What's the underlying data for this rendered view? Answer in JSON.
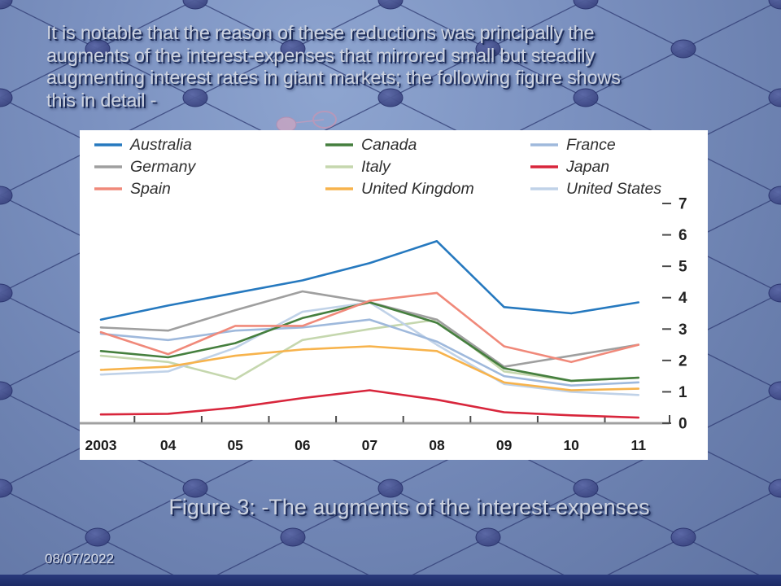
{
  "slide": {
    "intro_text": "It is notable that the reason of these reductions was principally the\naugments of the interest-expenses that mirrored small but steadily\naugmenting interest rates in giant markets; the following figure shows\nthis in detail -",
    "caption": "Figure 3: -The augments of the interest-expenses",
    "date": "08/07/2022"
  },
  "chart_data": {
    "type": "line",
    "x_tick_labels": [
      "2003",
      "04",
      "05",
      "06",
      "07",
      "08",
      "09",
      "10",
      "11"
    ],
    "y_ticks": [
      0,
      1,
      2,
      3,
      4,
      5,
      6,
      7
    ],
    "ylim": [
      0,
      7
    ],
    "grid": false,
    "legend_position": "top-left, 3 columns",
    "series": [
      {
        "name": "Australia",
        "color": "#2679bf",
        "values": [
          3.3,
          3.75,
          4.15,
          4.55,
          5.1,
          5.8,
          3.7,
          3.5,
          3.85
        ]
      },
      {
        "name": "Canada",
        "color": "#457f3e",
        "values": [
          2.3,
          2.1,
          2.55,
          3.35,
          3.85,
          3.2,
          1.75,
          1.35,
          1.45
        ]
      },
      {
        "name": "France",
        "color": "#9fb9dc",
        "values": [
          2.85,
          2.65,
          2.95,
          3.05,
          3.3,
          2.6,
          1.5,
          1.2,
          1.3
        ]
      },
      {
        "name": "Germany",
        "color": "#9f9f9f",
        "values": [
          3.05,
          2.95,
          3.6,
          4.2,
          3.85,
          3.3,
          1.8,
          2.15,
          2.5
        ]
      },
      {
        "name": "Italy",
        "color": "#c5d7ae",
        "values": [
          2.15,
          1.95,
          1.4,
          2.65,
          3.0,
          3.3,
          1.65,
          1.35,
          1.45
        ]
      },
      {
        "name": "Japan",
        "color": "#d8263c",
        "values": [
          0.28,
          0.3,
          0.5,
          0.8,
          1.05,
          0.75,
          0.35,
          0.25,
          0.18
        ]
      },
      {
        "name": "Spain",
        "color": "#f0897a",
        "values": [
          2.9,
          2.2,
          3.1,
          3.1,
          3.9,
          4.15,
          2.45,
          1.95,
          2.5
        ]
      },
      {
        "name": "United Kingdom",
        "color": "#f7b34c",
        "values": [
          1.7,
          1.8,
          2.15,
          2.35,
          2.45,
          2.3,
          1.3,
          1.05,
          1.1
        ]
      },
      {
        "name": "United States",
        "color": "#c0d2e8",
        "values": [
          1.55,
          1.65,
          2.4,
          3.55,
          3.85,
          2.5,
          1.25,
          1.0,
          0.9
        ]
      }
    ]
  },
  "theme": {
    "background_top": "#8ea5d0",
    "background_bottom": "#5f73a2",
    "pattern_line": "#2e3a72",
    "node_fill": "#3d4784",
    "node_stroke": "#27306b",
    "text_fill": "#cdd3e0",
    "text_shadow": "#1d2c59",
    "panel_bg": "#ffffff",
    "bottom_bar": "#1c2b66",
    "axis_color": "#a0a0a0",
    "tick_color": "#4a4a4a",
    "axis_label_color": "#1c1c1c",
    "legend_text_color": "#2f2f2f"
  }
}
